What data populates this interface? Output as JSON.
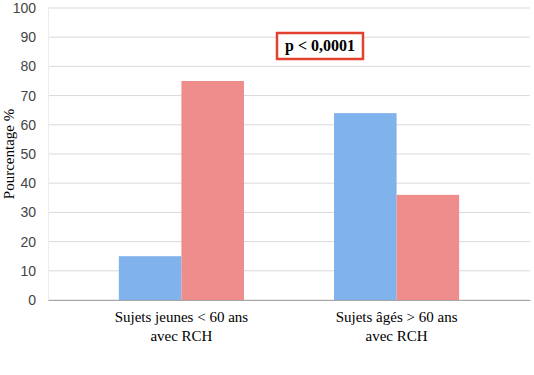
{
  "chart_data": {
    "type": "bar",
    "y_label": "Pourcentage %",
    "annotation": "p < 0,0001",
    "categories": [
      "Sujets jeunes < 60 ans\navec RCH",
      "Sujets âgés > 60 ans\navec RCH"
    ],
    "series": [
      {
        "color": "#80b2ec",
        "values": [
          15,
          64
        ]
      },
      {
        "color": "#ef8c8c",
        "values": [
          75,
          36
        ]
      }
    ],
    "ylim": [
      0,
      100
    ],
    "yticks": [
      0,
      10,
      20,
      30,
      40,
      50,
      60,
      70,
      80,
      90,
      100
    ],
    "grid": true
  }
}
